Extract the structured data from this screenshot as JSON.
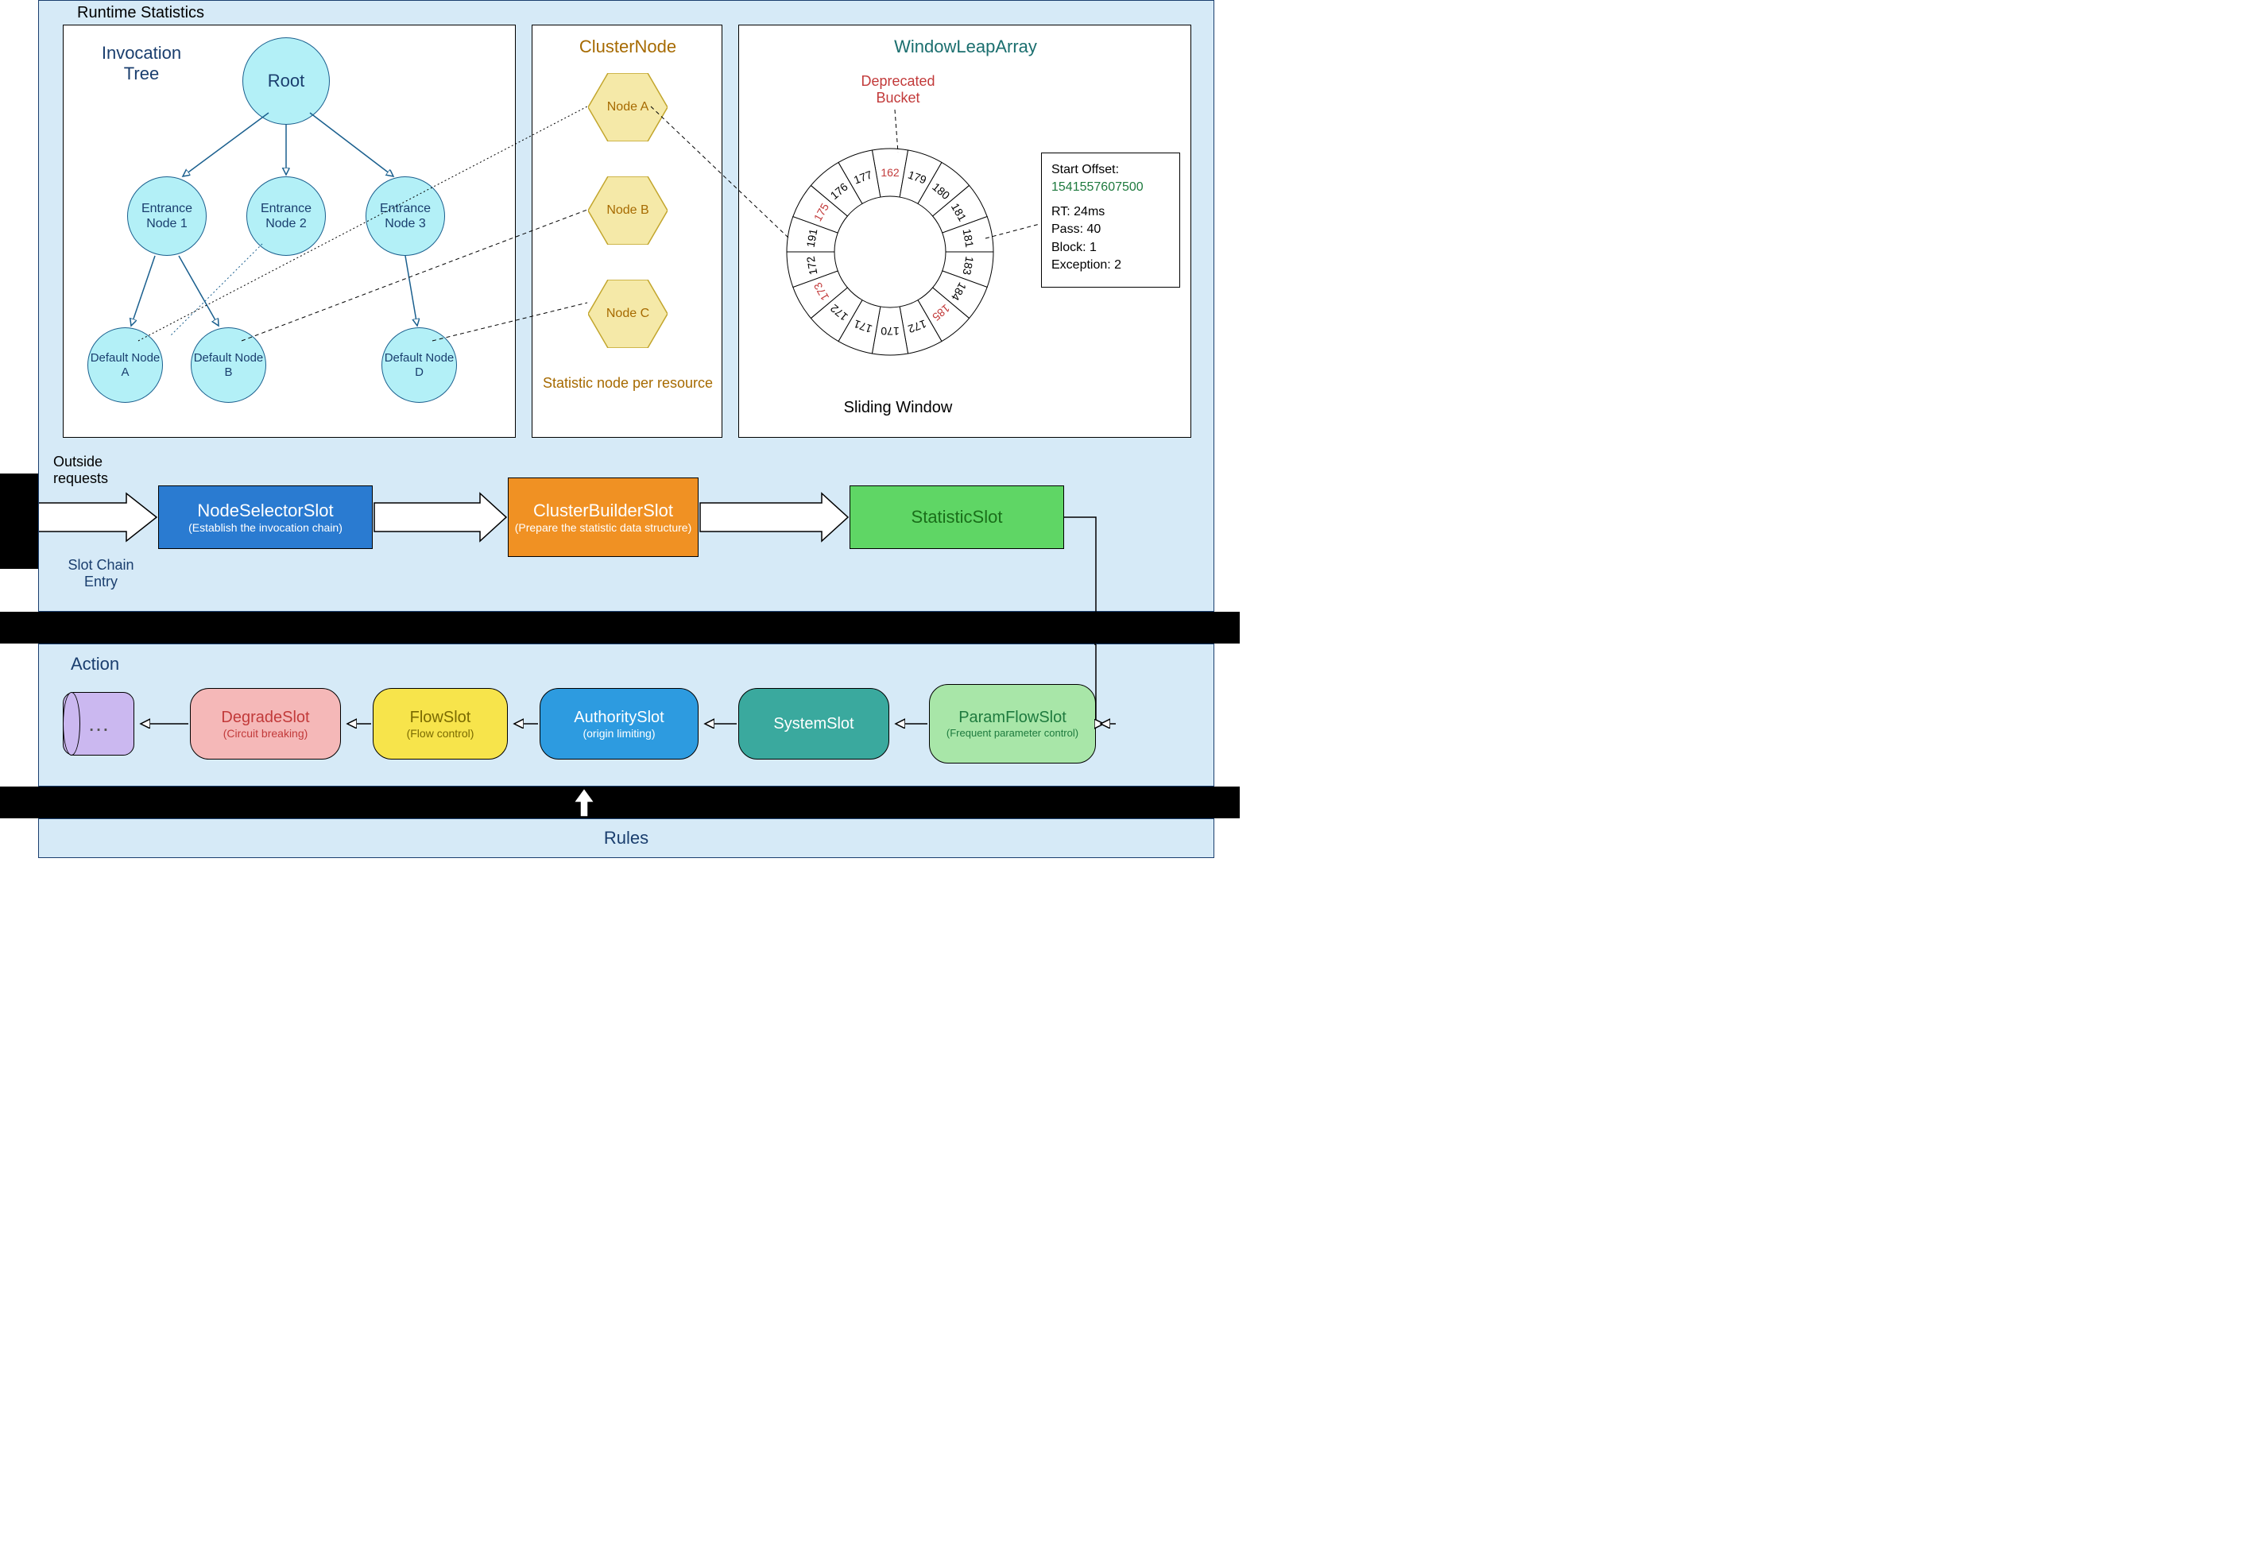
{
  "titles": {
    "runtimeStats": "Runtime Statistics",
    "invocationTree": "Invocation Tree",
    "clusterNode": "ClusterNode",
    "windowLeapArray": "WindowLeapArray",
    "clusterNodeSub": "Statistic node per resource",
    "deprecatedBucket": "Deprecated Bucket",
    "slidingWindow": "Sliding Window",
    "outsideRequests": "Outside requests",
    "slotChainEntry": "Slot Chain Entry",
    "action": "Action",
    "rules": "Rules"
  },
  "tree": {
    "root": "Root",
    "e1": "Entrance Node 1",
    "e2": "Entrance Node 2",
    "e3": "Entrance Node 3",
    "dA": "Default Node A",
    "dB": "Default Node B",
    "dD": "Default Node D"
  },
  "clusterNodes": {
    "a": "Node A",
    "b": "Node B",
    "c": "Node C"
  },
  "ring": {
    "values": [
      "162",
      "179",
      "180",
      "181",
      "181",
      "183",
      "184",
      "185",
      "172",
      "170",
      "171",
      "172",
      "173",
      "172",
      "191",
      "175",
      "176",
      "177"
    ],
    "redIndices": [
      0,
      7,
      12,
      15
    ],
    "deprecatedIndex": 0,
    "calloutIndex": 14
  },
  "detailBox": {
    "startOffsetLabel": "Start Offset:",
    "startOffsetValue": "1541557607500",
    "rt": "RT: 24ms",
    "pass": "Pass: 40",
    "block": "Block: 1",
    "exception": "Exception: 2"
  },
  "slots": {
    "nodeSelector": {
      "title": "NodeSelectorSlot",
      "sub": "(Establish the invocation chain)"
    },
    "clusterBuilder": {
      "title": "ClusterBuilderSlot",
      "sub": "(Prepare the statistic data structure)"
    },
    "statistic": {
      "title": "StatisticSlot",
      "sub": ""
    }
  },
  "actions": {
    "more": "…",
    "degrade": {
      "title": "DegradeSlot",
      "sub": "(Circuit breaking)"
    },
    "flow": {
      "title": "FlowSlot",
      "sub": "(Flow control)"
    },
    "authority": {
      "title": "AuthoritySlot",
      "sub": "(origin limiting)"
    },
    "system": {
      "title": "SystemSlot",
      "sub": ""
    },
    "paramFlow": {
      "title": "ParamFlowSlot",
      "sub": "(Frequent parameter control)"
    }
  },
  "colors": {
    "panel": "#d6eaf7",
    "border": "#1a3e6e",
    "circleFill": "#b3f0f7",
    "circleBorder": "#1a5f8e",
    "hexFill": "#f5e9a8",
    "hexBorder": "#c2a52c",
    "hexText": "#a66a00",
    "nodeSelector": "#2a7bd1",
    "nodeSelectorText": "#ffffff",
    "clusterBuilder": "#f09123",
    "clusterBuilderText": "#ffffff",
    "statistic": "#5fd665",
    "statisticText": "#1a6e1a",
    "degrade": "#f5b8b8",
    "degradeText": "#c23a3a",
    "flow": "#f7e44b",
    "flowText": "#7a6a00",
    "authority": "#2d9be0",
    "authorityText": "#ffffff",
    "system": "#3aa99e",
    "systemText": "#ffffff",
    "paramFlow": "#a8e6a8",
    "paramFlowText": "#1e7a3e",
    "more": "#cbb8f0",
    "moreText": "#555",
    "windowTitle": "#1a6e6e",
    "deprecated": "#c23a3a",
    "startOffset": "#1e7a3e"
  }
}
